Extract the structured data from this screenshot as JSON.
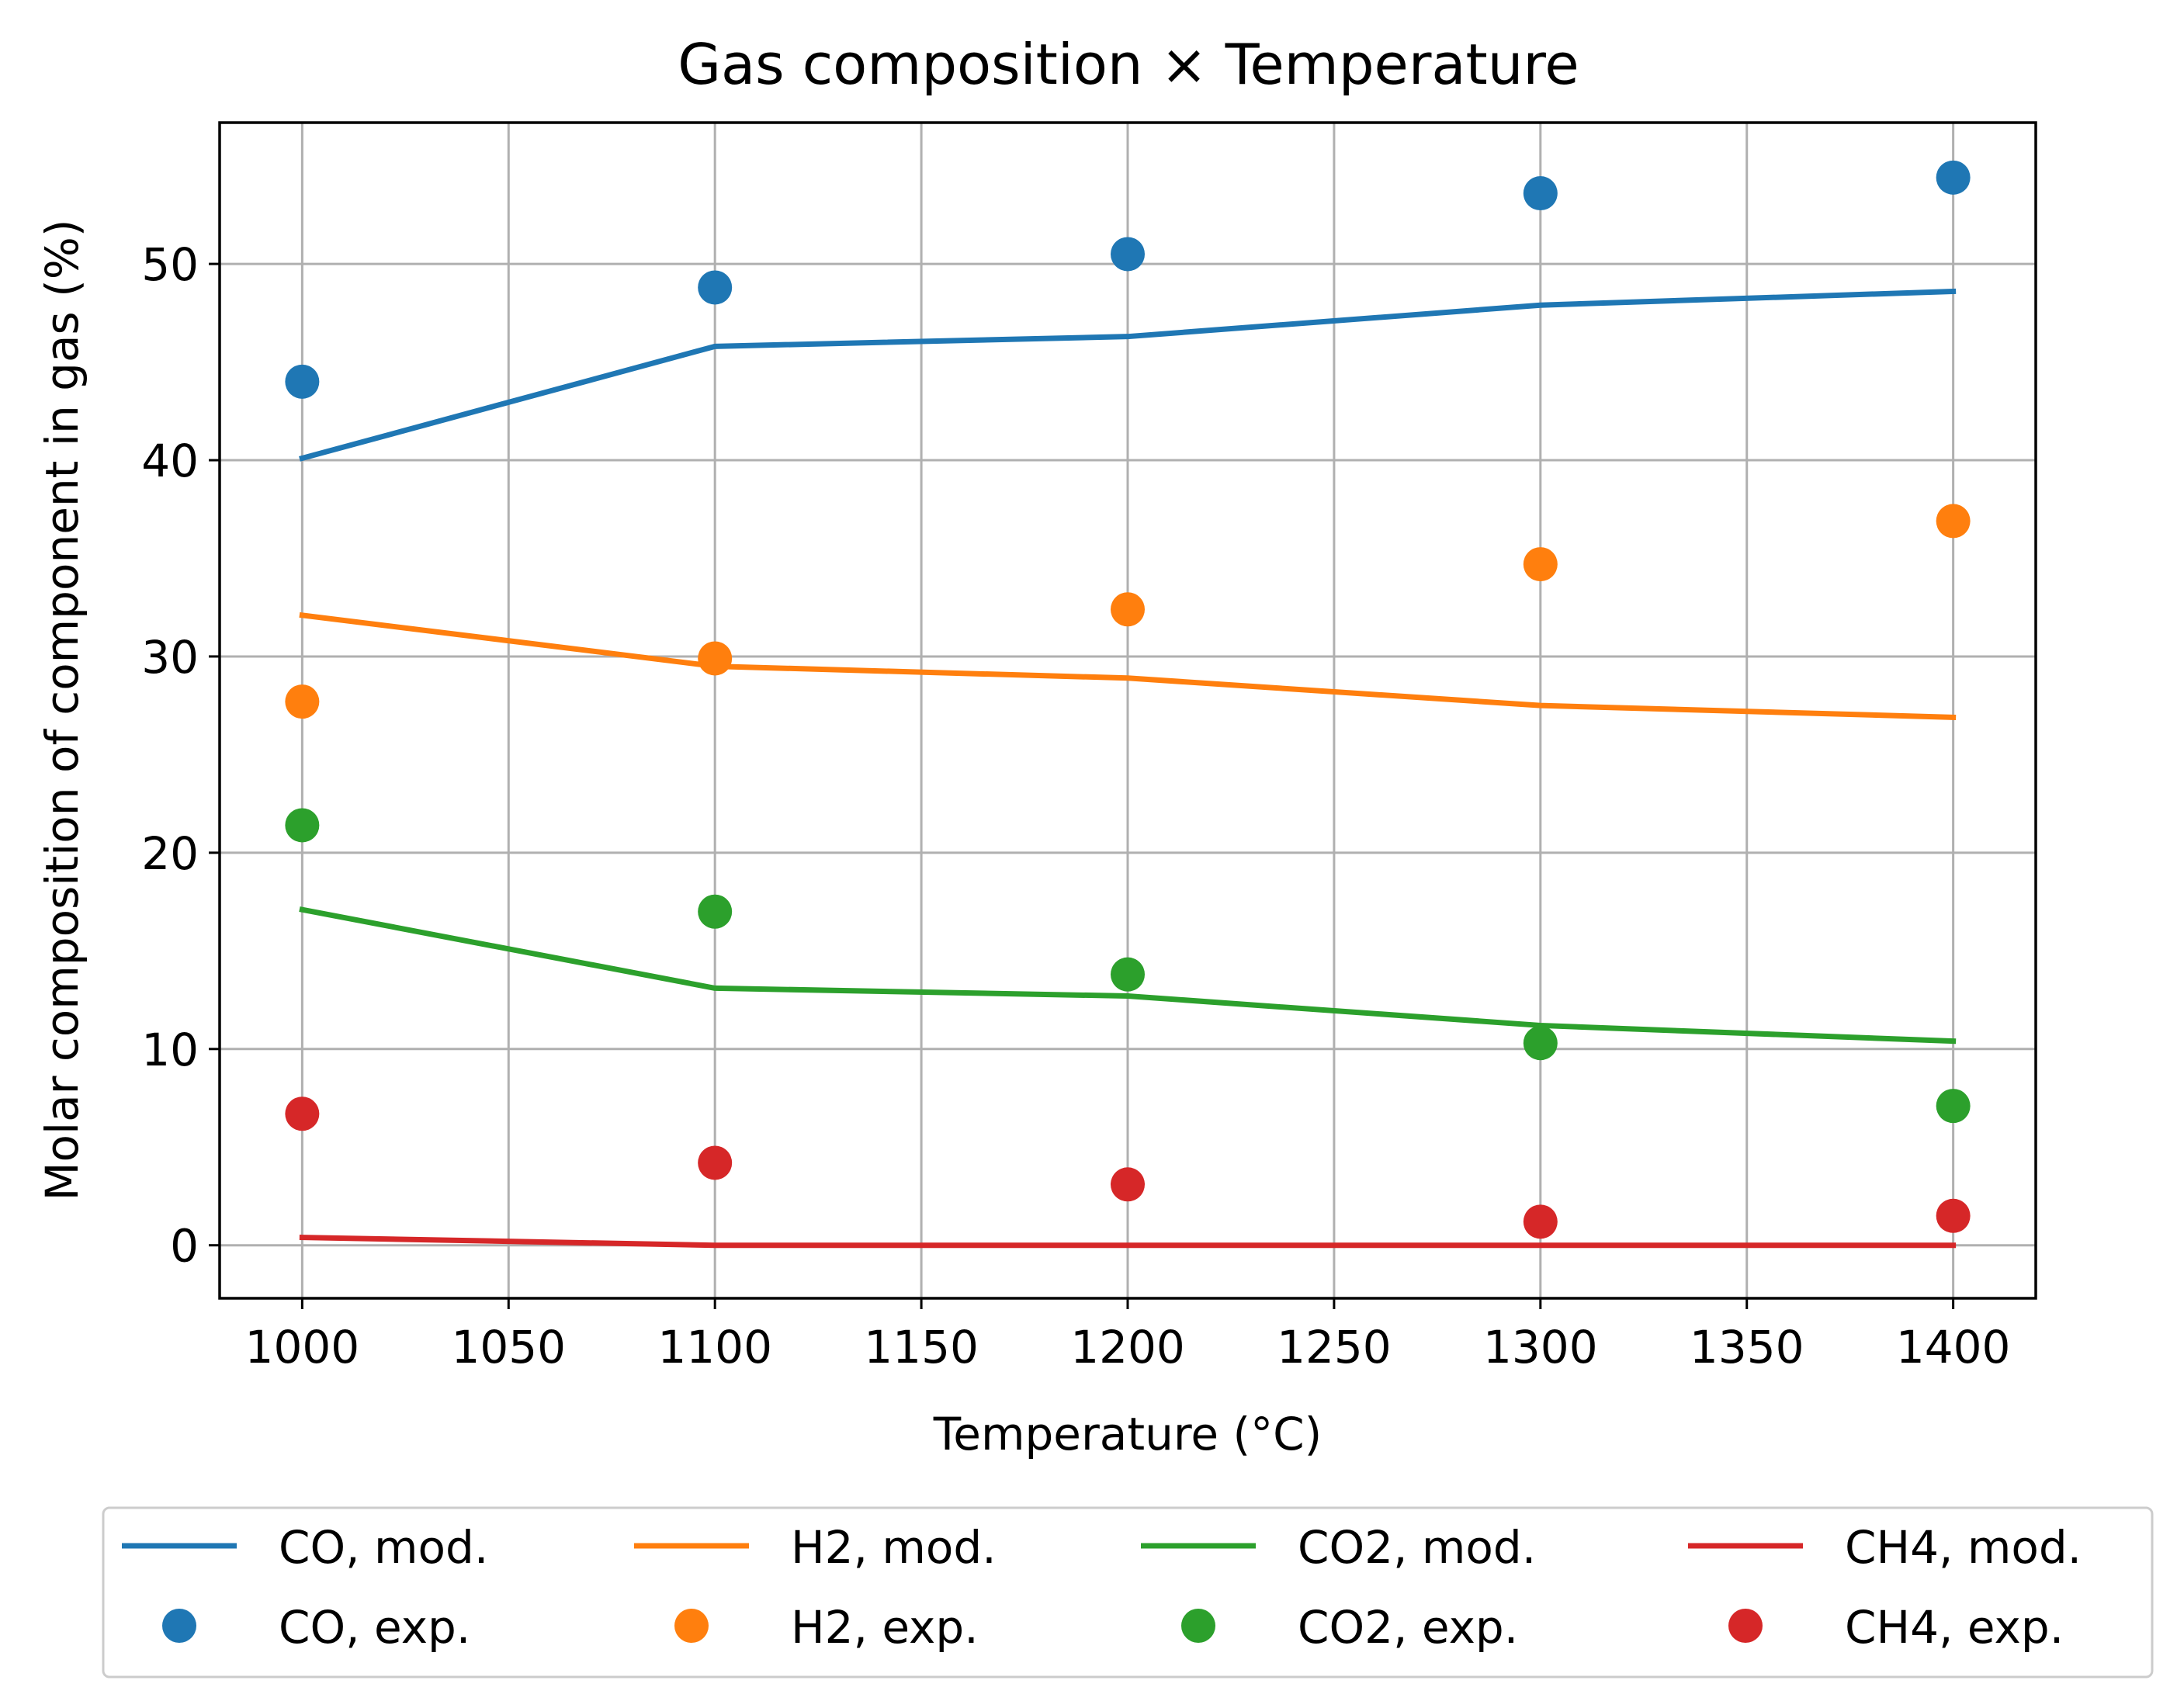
{
  "chart_data": {
    "type": "line",
    "title": "Gas composition × Temperature",
    "xlabel": "Temperature (°C)",
    "ylabel": "Molar composition of component in gas (%)",
    "xlim": [
      980,
      1420
    ],
    "ylim": [
      -2.7,
      57.2
    ],
    "xticks": [
      1000,
      1050,
      1100,
      1150,
      1200,
      1250,
      1300,
      1350,
      1400
    ],
    "yticks": [
      0,
      10,
      20,
      30,
      40,
      50
    ],
    "grid": true,
    "legend_position": "bottom-center",
    "x": [
      1000,
      1100,
      1200,
      1300,
      1400
    ],
    "series": [
      {
        "name": "CO, mod.",
        "kind": "line",
        "color": "#1f77b4",
        "values": [
          40.1,
          45.8,
          46.3,
          47.9,
          48.6
        ]
      },
      {
        "name": "H2, mod.",
        "kind": "line",
        "color": "#ff7f0e",
        "values": [
          32.1,
          29.5,
          28.9,
          27.5,
          26.9
        ]
      },
      {
        "name": "CO2, mod.",
        "kind": "line",
        "color": "#2ca02c",
        "values": [
          17.1,
          13.1,
          12.7,
          11.2,
          10.4
        ]
      },
      {
        "name": "CH4, mod.",
        "kind": "line",
        "color": "#d62728",
        "values": [
          0.4,
          0.0,
          0.0,
          0.0,
          0.0
        ]
      },
      {
        "name": "CO, exp.",
        "kind": "scatter",
        "color": "#1f77b4",
        "values": [
          44.0,
          48.8,
          50.5,
          53.6,
          54.4
        ]
      },
      {
        "name": "H2, exp.",
        "kind": "scatter",
        "color": "#ff7f0e",
        "values": [
          27.7,
          29.9,
          32.4,
          34.7,
          36.9
        ]
      },
      {
        "name": "CO2, exp.",
        "kind": "scatter",
        "color": "#2ca02c",
        "values": [
          21.4,
          17.0,
          13.8,
          10.3,
          7.1
        ]
      },
      {
        "name": "CH4, exp.",
        "kind": "scatter",
        "color": "#d62728",
        "values": [
          6.7,
          4.2,
          3.1,
          1.2,
          1.5
        ]
      }
    ],
    "legend_order": [
      "CO, mod.",
      "CO, exp.",
      "H2, mod.",
      "H2, exp.",
      "CO2, mod.",
      "CO2, exp.",
      "CH4, mod.",
      "CH4, exp."
    ],
    "legend_columns": 4
  }
}
